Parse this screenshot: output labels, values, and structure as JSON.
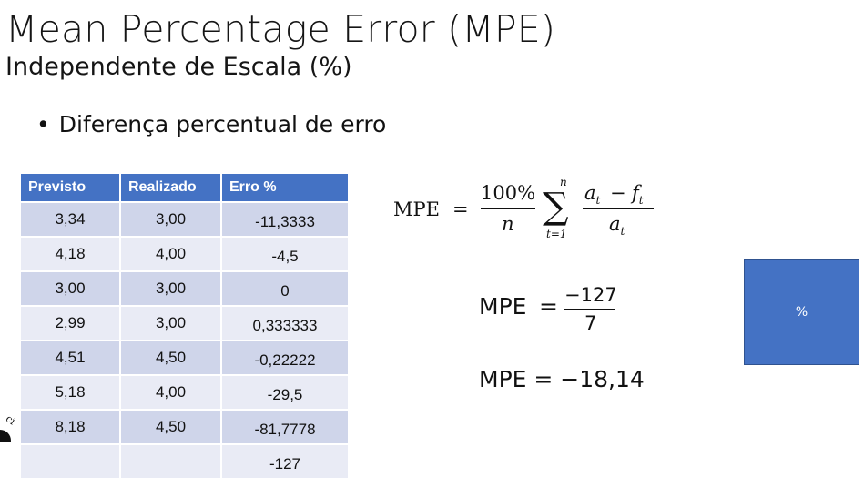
{
  "slide": {
    "title": "Mean Percentage Error (MPE)",
    "subtitle": "Independente de Escala (%)",
    "bullet": "Diferença percentual de erro",
    "bullet_symbol": "•"
  },
  "table": {
    "headers": [
      "Previsto",
      "Realizado",
      "Erro %"
    ],
    "rows": [
      [
        "3,34",
        "3,00",
        "-11,3333"
      ],
      [
        "4,18",
        "4,00",
        "-4,5"
      ],
      [
        "3,00",
        "3,00",
        "0"
      ],
      [
        "2,99",
        "3,00",
        "0,333333"
      ],
      [
        "4,51",
        "4,50",
        "-0,22222"
      ],
      [
        "5,18",
        "4,00",
        "-29,5"
      ],
      [
        "8,18",
        "4,50",
        "-81,7778"
      ],
      [
        "",
        "",
        "-127"
      ]
    ]
  },
  "formula_definition": {
    "lhs": "MPE",
    "eq": "=",
    "numerator": "100%",
    "denominator": "n",
    "sum": "∑",
    "sum_upper": "n",
    "sum_lower": "t=1",
    "frac_numerator": "a",
    "frac_numerator_sub": "t",
    "minus": "−",
    "frac_numerator_2": "f",
    "frac_numerator_2_sub": "t",
    "frac_denominator": "a",
    "frac_denominator_sub": "t"
  },
  "formula_computed": {
    "lhs": "MPE",
    "eq": "=",
    "numerator": "−127",
    "denominator": "7"
  },
  "formula_result": {
    "text": "MPE = −18,14"
  },
  "side_box": {
    "label": "%",
    "color": "#4472c4"
  },
  "colors": {
    "header_bg": "#4472c4",
    "row_odd": "#cfd5ea",
    "row_even": "#e9ebf5"
  },
  "logo_fragment": {
    "text": "ci"
  }
}
